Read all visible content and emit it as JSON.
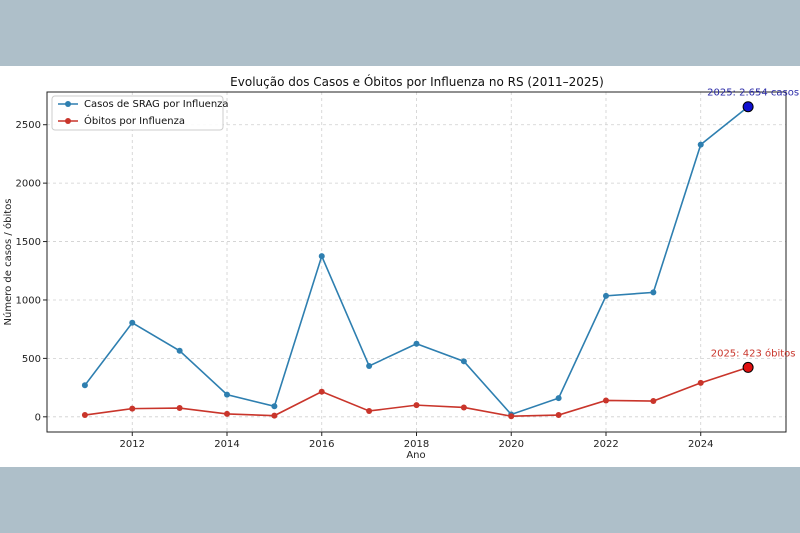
{
  "chart_data": {
    "type": "line",
    "title": "Evolução dos Casos e Óbitos por Influenza no RS (2011–2025)",
    "xlabel": "Ano",
    "ylabel": "Número de casos / óbitos",
    "x": [
      2011,
      2012,
      2013,
      2014,
      2015,
      2016,
      2017,
      2018,
      2019,
      2020,
      2021,
      2022,
      2023,
      2024,
      2025
    ],
    "xlim": [
      2010.2,
      2025.8
    ],
    "ylim": [
      -130,
      2780
    ],
    "xticks": [
      2012,
      2014,
      2016,
      2018,
      2020,
      2022,
      2024
    ],
    "yticks": [
      0,
      500,
      1000,
      1500,
      2000,
      2500
    ],
    "grid": true,
    "legend_position": "top-left",
    "series": [
      {
        "name": "Casos de SRAG por Influenza",
        "color": "#2e7fb0",
        "values": [
          270,
          805,
          565,
          190,
          90,
          1375,
          435,
          625,
          475,
          20,
          160,
          1035,
          1065,
          2330,
          2654
        ]
      },
      {
        "name": "Óbitos por Influenza",
        "color": "#c9352b",
        "values": [
          15,
          70,
          75,
          25,
          10,
          215,
          50,
          100,
          80,
          5,
          15,
          140,
          135,
          290,
          423
        ]
      }
    ],
    "annotations": [
      {
        "text": "2025: 2.654 casos",
        "x": 2025,
        "y": 2654,
        "color": "#2b2ba8",
        "marker_color": "#1010d0"
      },
      {
        "text": "2025: 423 óbitos",
        "x": 2025,
        "y": 423,
        "color": "#c9352b",
        "marker_color": "#e01010"
      }
    ]
  }
}
